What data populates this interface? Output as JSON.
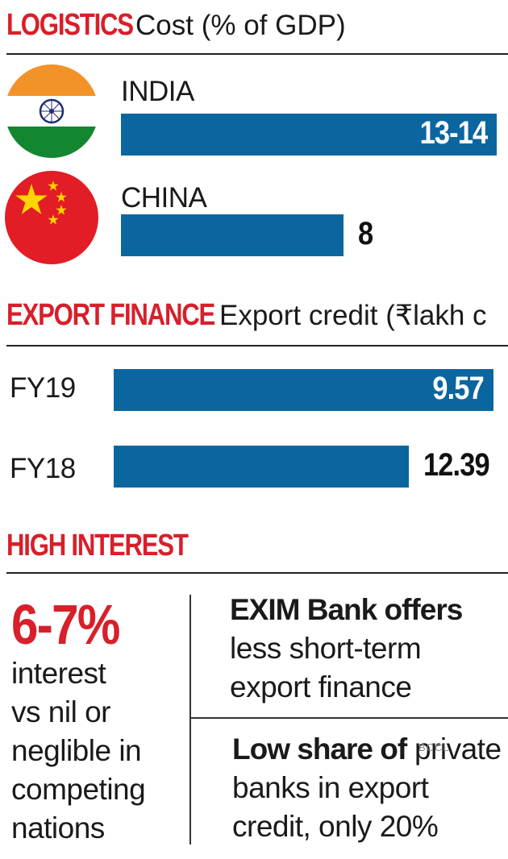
{
  "colors": {
    "accent_red": "#d81f2a",
    "bar_blue": "#0b66a0"
  },
  "sections": {
    "logistics": {
      "title": "LOGISTICS",
      "subtitle": "Cost (% of GDP)"
    },
    "export_finance": {
      "title": "EXPORT FINANCE",
      "subtitle": "Export credit (₹lakh c"
    },
    "high_interest": {
      "title": "HIGH INTEREST"
    }
  },
  "flags": {
    "india": "india-flag-icon",
    "china": "china-flag-icon"
  },
  "chart_data": [
    {
      "type": "bar",
      "orientation": "horizontal",
      "title": "LOGISTICS",
      "subtitle": "Cost (% of GDP)",
      "categories": [
        "INDIA",
        "CHINA"
      ],
      "value_labels": [
        "13-14",
        "8"
      ],
      "values": [
        13.5,
        8
      ]
    },
    {
      "type": "bar",
      "orientation": "horizontal",
      "title": "EXPORT FINANCE",
      "subtitle": "Export credit (₹lakh c",
      "categories": [
        "FY19",
        "FY18"
      ],
      "value_labels": [
        "9.57",
        "12.39"
      ],
      "values": [
        9.57,
        12.39
      ]
    }
  ],
  "high_interest": {
    "big_stat": "6-7%",
    "left_lines": [
      "interest",
      "vs nil or",
      "neglible in",
      "competing",
      "nations"
    ],
    "point1": {
      "bold": "EXIM Bank offers",
      "lines": [
        "less short-term",
        "export finance"
      ]
    },
    "point2": {
      "bold": "Low share of",
      "rest": " private",
      "lines": [
        "banks in export",
        "credit, only 20%"
      ]
    }
  },
  "watermark": "BCCL"
}
